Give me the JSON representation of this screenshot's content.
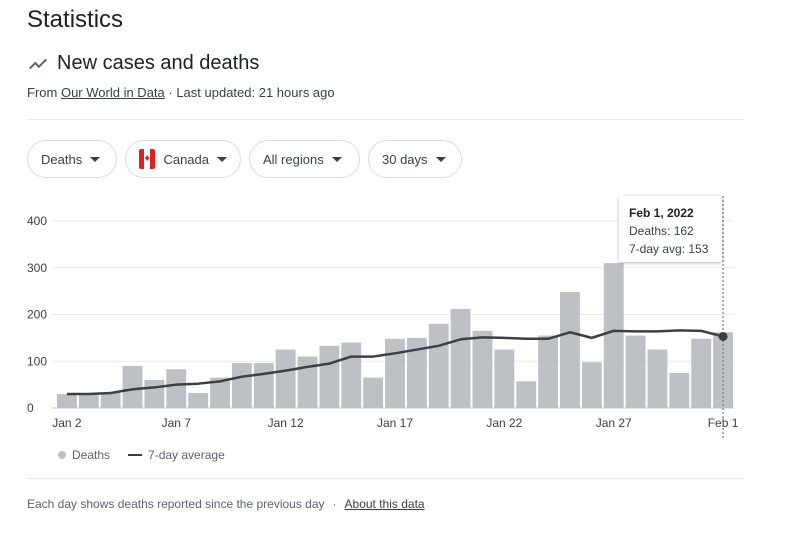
{
  "page": {
    "title": "Statistics",
    "section_title": "New cases and deaths",
    "source_prefix": "From",
    "source_link": "Our World in Data",
    "updated": "· Last updated: 21 hours ago"
  },
  "filters": {
    "metric": "Deaths",
    "country": "Canada",
    "region": "All regions",
    "range": "30 days"
  },
  "tooltip": {
    "date": "Feb 1, 2022",
    "deaths": "Deaths: 162",
    "avg": "7-day avg: 153"
  },
  "legend": {
    "deaths": "Deaths",
    "avg": "7-day average"
  },
  "footer": {
    "text": "Each day shows deaths reported since the previous day",
    "separator": "·",
    "link": "About this data"
  },
  "colors": {
    "bar": "#bdc1c6",
    "line": "#3c4043",
    "grid": "#e8eaed"
  },
  "chart_data": {
    "type": "bar",
    "categories": [
      "Jan 2",
      "Jan 3",
      "Jan 4",
      "Jan 5",
      "Jan 6",
      "Jan 7",
      "Jan 8",
      "Jan 9",
      "Jan 10",
      "Jan 11",
      "Jan 12",
      "Jan 13",
      "Jan 14",
      "Jan 15",
      "Jan 16",
      "Jan 17",
      "Jan 18",
      "Jan 19",
      "Jan 20",
      "Jan 21",
      "Jan 22",
      "Jan 23",
      "Jan 24",
      "Jan 25",
      "Jan 26",
      "Jan 27",
      "Jan 28",
      "Jan 29",
      "Jan 30",
      "Jan 31",
      "Feb 1"
    ],
    "x_tick_labels": [
      "Jan 2",
      "Jan 7",
      "Jan 12",
      "Jan 17",
      "Jan 22",
      "Jan 27",
      "Feb 1"
    ],
    "y_ticks": [
      0,
      100,
      200,
      300,
      400
    ],
    "ylim": [
      0,
      400
    ],
    "series": [
      {
        "name": "Deaths",
        "type": "bar",
        "values": [
          30,
          30,
          32,
          90,
          60,
          83,
          32,
          65,
          96,
          96,
          125,
          110,
          133,
          140,
          65,
          148,
          150,
          180,
          212,
          165,
          125,
          57,
          155,
          248,
          98,
          310,
          155,
          125,
          75,
          148,
          162
        ]
      },
      {
        "name": "7-day average",
        "type": "line",
        "values": [
          30,
          30,
          32,
          40,
          44,
          50,
          52,
          57,
          67,
          73,
          80,
          88,
          95,
          110,
          110,
          117,
          125,
          133,
          147,
          151,
          150,
          148,
          148,
          162,
          150,
          165,
          164,
          164,
          166,
          165,
          153
        ]
      }
    ]
  }
}
